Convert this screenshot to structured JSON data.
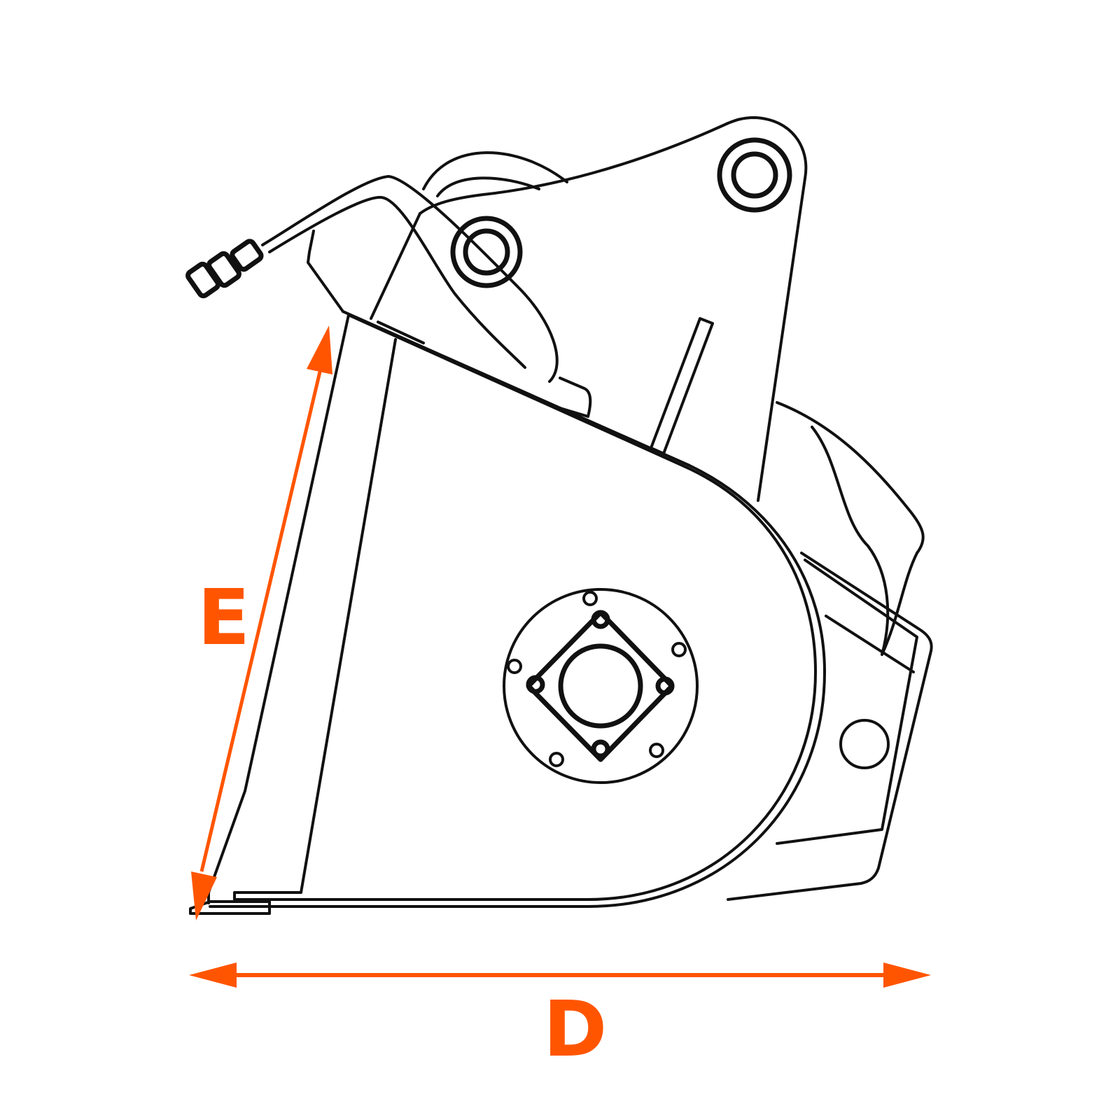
{
  "diagram": {
    "subject": "bucket-attachment-side-view",
    "dimensions": [
      {
        "label": "E",
        "orientation": "height"
      },
      {
        "label": "D",
        "orientation": "depth"
      }
    ]
  },
  "colors": {
    "line": "#111111",
    "dimension": "#ff5500",
    "background": "#ffffff"
  }
}
